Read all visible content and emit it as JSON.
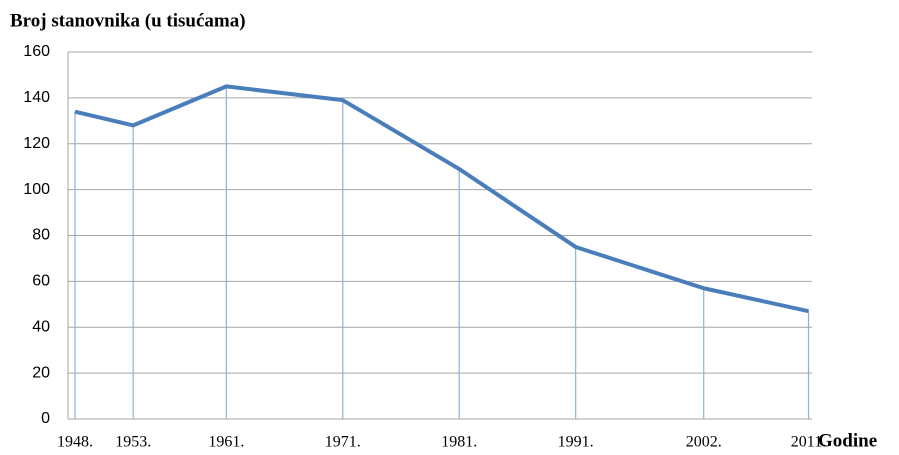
{
  "chart_data": {
    "type": "line",
    "title": "Broj stanovnika (u tisućama)",
    "x_label": "Godine",
    "x": [
      1948,
      1953,
      1961,
      1971,
      1981,
      1991,
      2002,
      2011
    ],
    "series": [
      {
        "name": "Broj stanovnika",
        "color": "#4a7ebb",
        "values": [
          134,
          128,
          145,
          139,
          109,
          75,
          57,
          47
        ]
      }
    ],
    "xlim": [
      1947.4,
      2011.3
    ],
    "xticks": [
      {
        "value": 1948,
        "label": "1948."
      },
      {
        "value": 1953,
        "label": "1953."
      },
      {
        "value": 1961,
        "label": "1961."
      },
      {
        "value": 1971,
        "label": "1971."
      },
      {
        "value": 1981,
        "label": "1981."
      },
      {
        "value": 1991,
        "label": "1991."
      },
      {
        "value": 2002,
        "label": "2002."
      },
      {
        "value": 2011,
        "label": "2011."
      }
    ],
    "ylim": [
      0,
      160
    ],
    "yticks": [
      0,
      20,
      40,
      60,
      80,
      100,
      120,
      140,
      160
    ],
    "grid": true
  }
}
